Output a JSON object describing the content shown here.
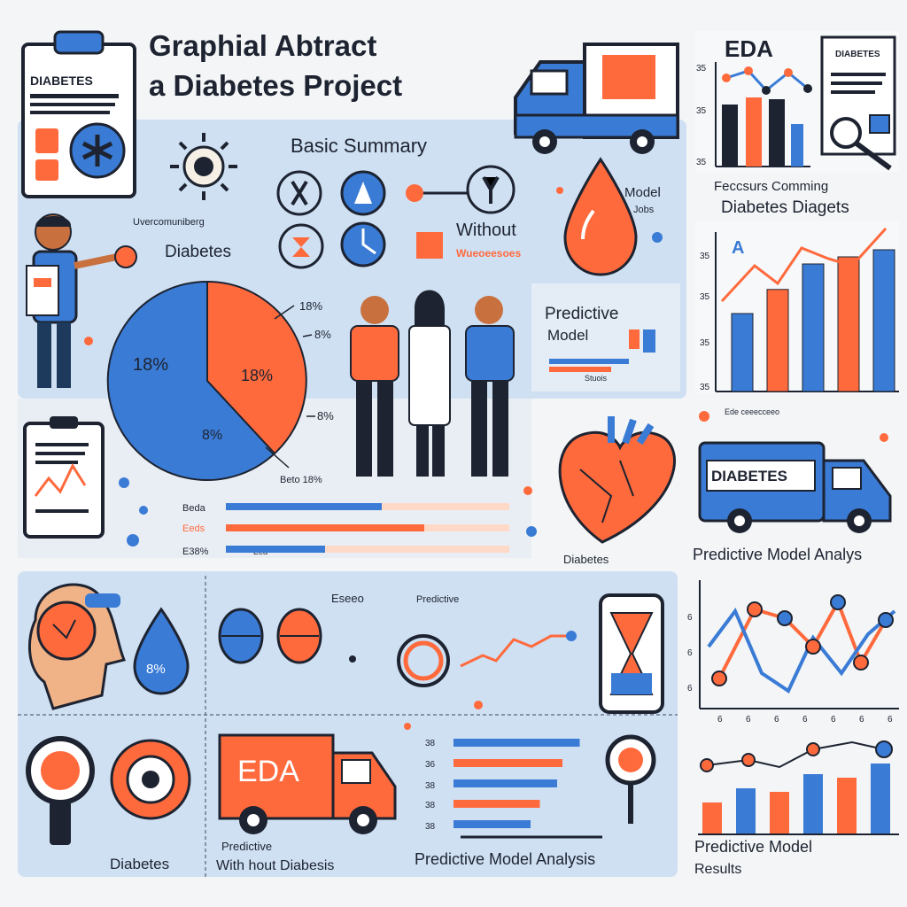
{
  "header": {
    "title_line1": "Graphial Abtract",
    "title_line2": "a Diabetes Project"
  },
  "clipboard_top": {
    "label": "DIABETES"
  },
  "eda_panel": {
    "title": "EDA",
    "doc_label": "DIABETES",
    "subtitle_line1": "Feccsurs Comming",
    "subtitle_line2": "Diabetes Diagets",
    "y_ticks": [
      "35",
      "35",
      "35"
    ]
  },
  "summary": {
    "title": "Basic Summary",
    "label_left_small": "Uvercomuniberg",
    "label_left": "Diabetes",
    "label_without": "Without",
    "label_without_small": "Wueoeesoes",
    "model_label": "Model",
    "model_sublabel": "Jobs"
  },
  "pie": {
    "center_left": "18%",
    "center_right": "18%",
    "center_bottom": "8%",
    "callouts": [
      "18%",
      "8%",
      "8%",
      "Beto 18%"
    ]
  },
  "predictive_box": {
    "line1": "Predictive",
    "line2": "Model",
    "small": "Stuois"
  },
  "hbars": {
    "labels": [
      "Beda",
      "Eeds",
      "E38%",
      "Eea"
    ],
    "fill": [
      0.55,
      0.7,
      0.35
    ]
  },
  "right_chart": {
    "y_ticks": [
      "35",
      "35",
      "35",
      "35"
    ],
    "marker": "A",
    "bars": [
      0.55,
      0.72,
      0.9,
      0.95,
      1.0
    ],
    "footer": "Ede ceeecceeo"
  },
  "heart_label": "Diabetes",
  "van_right": {
    "label": "DIABETES",
    "caption": "Predictive Model Analys"
  },
  "bottom": {
    "drop_text": "8%",
    "eda_van": "EDA",
    "diabetes_label": "Diabetes",
    "subtitle_small": "Predictive",
    "label_with": "With hout Diabesis",
    "eseg": "Eseeo",
    "predictive_top": "Predictive",
    "predictive_analysis": "Predictive Model Analysis",
    "bar_labels": [
      "38",
      "36",
      "38",
      "38",
      "38"
    ],
    "bar_fill": [
      0.95,
      0.82,
      0.78,
      0.65,
      0.58
    ]
  },
  "line_chart": {
    "y_ticks": [
      "6",
      "6",
      "6"
    ],
    "x_ticks": [
      "6",
      "6",
      "6",
      "6",
      "6",
      "6",
      "6"
    ]
  },
  "results": {
    "line1": "Predictive Model",
    "line2": "Results",
    "bars": [
      0.45,
      0.65,
      0.6,
      0.85,
      0.8,
      1.0
    ]
  }
}
